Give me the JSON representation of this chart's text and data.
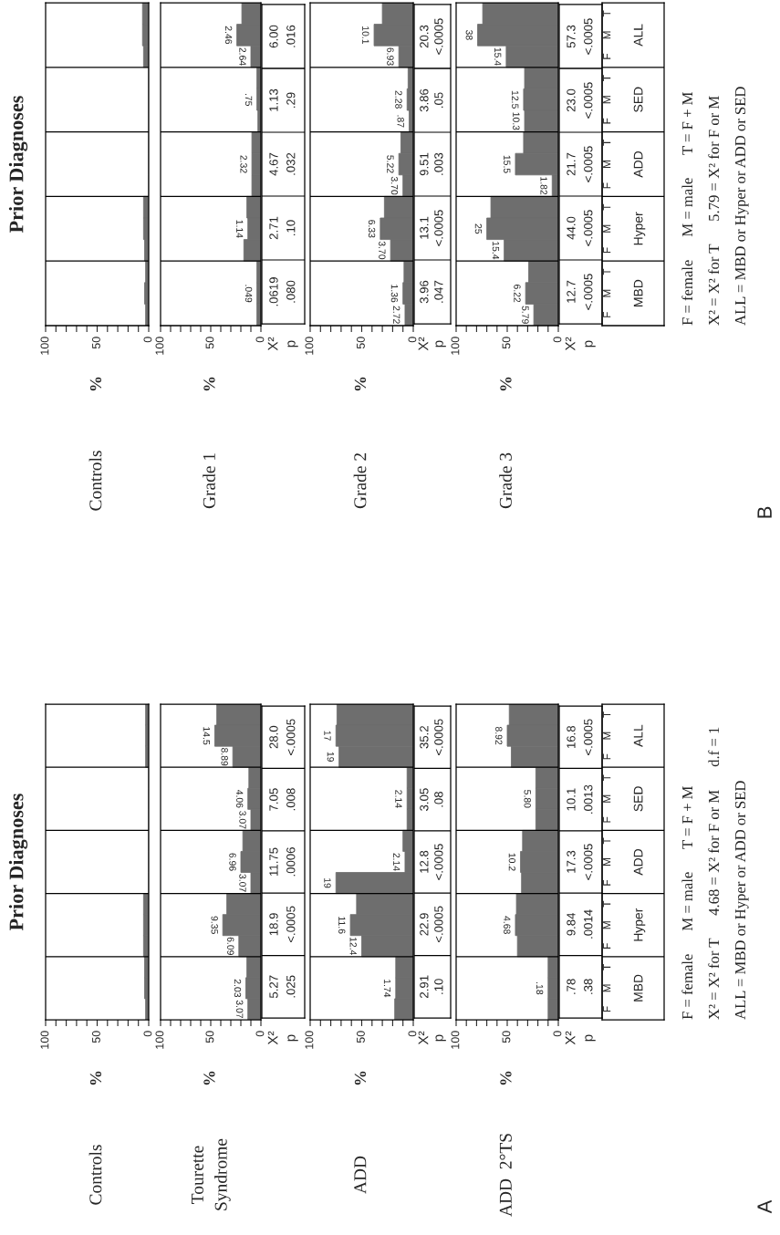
{
  "chart_data": [
    {
      "type": "bar",
      "orientation": "horizontal",
      "title": "Controls",
      "ylabel": "%",
      "color": "#6e6e6e",
      "values": [
        6,
        6,
        5,
        0,
        0,
        0,
        0,
        0,
        0,
        5,
        5,
        4,
        3,
        4,
        3
      ],
      "xlim": [
        100,
        0
      ],
      "xticks": [
        100,
        {
          "value": 90,
          "label": null
        },
        {
          "value": 80,
          "label": null
        },
        {
          "value": 70,
          "label": null
        },
        {
          "value": 60,
          "label": null
        },
        50,
        {
          "value": 40,
          "label": null
        },
        {
          "value": 30,
          "label": null
        },
        {
          "value": 20,
          "label": null
        },
        {
          "value": 10,
          "label": null
        },
        0
      ],
      "tick_labels": "x",
      "annotations": [
        "Prior Diagnoses"
      ]
    },
    {
      "type": "bar",
      "orientation": "horizontal",
      "title": "Grade 1",
      "ylabel": "%",
      "color": "#6e6e6e",
      "values": [
        19,
        24,
        10,
        4,
        4,
        3,
        9,
        9,
        9,
        14,
        13,
        17,
        4,
        4,
        4
      ],
      "xlim": [
        100,
        0
      ],
      "xticks": [
        100,
        {
          "value": 90,
          "label": null
        },
        {
          "value": 80,
          "label": null
        },
        {
          "value": 70,
          "label": null
        },
        {
          "value": 60,
          "label": null
        },
        50,
        {
          "value": 40,
          "label": null
        },
        {
          "value": 30,
          "label": null
        },
        {
          "value": 20,
          "label": null
        },
        {
          "value": 10,
          "label": null
        },
        0
      ],
      "tick_labels": "x",
      "annotations": [
        "X²",
        "p",
        ".0619",
        ".080",
        "2.71",
        ".10",
        "4.67",
        ".032",
        "1.13",
        ".29",
        "6.00",
        ".016",
        "2.46",
        "2.64",
        ".75",
        "2.32",
        "1.14",
        ".049"
      ]
    },
    {
      "type": "bar",
      "orientation": "horizontal",
      "title": "Grade 2",
      "ylabel": "%",
      "color": "#6e6e6e",
      "values": [
        30,
        38,
        14,
        5,
        6,
        4,
        12,
        14,
        10,
        28,
        32,
        22,
        9,
        10,
        8
      ],
      "xlim": [
        100,
        0
      ],
      "xticks": [
        100,
        {
          "value": 90,
          "label": null
        },
        {
          "value": 80,
          "label": null
        },
        {
          "value": 70,
          "label": null
        },
        {
          "value": 60,
          "label": null
        },
        50,
        {
          "value": 40,
          "label": null
        },
        {
          "value": 30,
          "label": null
        },
        {
          "value": 20,
          "label": null
        },
        {
          "value": 10,
          "label": null
        },
        0
      ],
      "tick_labels": "x",
      "annotations": [
        "X²",
        "p",
        "3.96",
        ".047",
        "13.1",
        "<.0005",
        "9.51",
        ".003",
        "3.86",
        ".05",
        "20.3",
        "<.0005",
        "10.1",
        "6.93",
        "2.28",
        ".87",
        "5.22",
        "3.70",
        "6.33",
        "3.70",
        "1.36",
        "2.72"
      ]
    },
    {
      "type": "bar",
      "orientation": "horizontal",
      "title": "Grade 3",
      "ylabel": "%",
      "color": "#6e6e6e",
      "categories": [
        "T",
        "M",
        "F",
        "T",
        "M",
        "F",
        "T",
        "M",
        "F",
        "T",
        "M",
        "F",
        "T",
        "M",
        "F"
      ],
      "values": [
        74,
        79,
        51,
        33,
        34,
        33,
        34,
        42,
        6,
        66,
        70,
        53,
        29,
        32,
        24
      ],
      "xlim": [
        100,
        0
      ],
      "xticks": [
        100,
        {
          "value": 90,
          "label": null
        },
        {
          "value": 80,
          "label": null
        },
        {
          "value": 70,
          "label": null
        },
        {
          "value": 60,
          "label": null
        },
        50,
        {
          "value": 40,
          "label": null
        },
        {
          "value": 30,
          "label": null
        },
        {
          "value": 20,
          "label": null
        },
        {
          "value": 10,
          "label": null
        },
        0
      ],
      "annotations": [
        "X²",
        "p",
        "12.7",
        "<.0005",
        "44.0",
        "<.0005",
        "21.7",
        "<.0005",
        "23.0",
        "<.0005",
        "57.3",
        "<.0005",
        "MBD",
        "Hyper",
        "ADD",
        "SED",
        "ALL",
        "F = female      M = male      T = F + M",
        "X² = X² for T      5.79 = X² for F or M",
        "ALL = MBD or Hyper or ADD or SED",
        "B",
        "38",
        "15.4",
        "12.5",
        "10.3",
        "15.5",
        "1.82",
        "25",
        "15.4",
        "6.22",
        "5.79"
      ]
    },
    {
      "type": "bar",
      "orientation": "horizontal",
      "title": "Controls",
      "ylabel": "%",
      "color": "#6e6e6e",
      "values": [
        3,
        3,
        3,
        0,
        0,
        0,
        0,
        0,
        0,
        5,
        5,
        5,
        4,
        4,
        3
      ],
      "xlim": [
        100,
        0
      ],
      "xticks": [
        100,
        {
          "value": 90,
          "label": null
        },
        {
          "value": 80,
          "label": null
        },
        {
          "value": 70,
          "label": null
        },
        {
          "value": 60,
          "label": null
        },
        50,
        {
          "value": 40,
          "label": null
        },
        {
          "value": 30,
          "label": null
        },
        {
          "value": 20,
          "label": null
        },
        {
          "value": 10,
          "label": null
        },
        0
      ],
      "tick_labels": "x",
      "annotations": [
        "Prior Diagnoses"
      ]
    },
    {
      "type": "bar",
      "orientation": "horizontal",
      "title": "Tourette\nSyndrome",
      "ylabel": "%",
      "color": "#6e6e6e",
      "values": [
        44,
        46,
        28,
        12,
        13,
        10,
        18,
        20,
        10,
        34,
        38,
        22,
        14,
        15,
        13
      ],
      "xlim": [
        100,
        0
      ],
      "xticks": [
        100,
        {
          "value": 90,
          "label": null
        },
        {
          "value": 80,
          "label": null
        },
        {
          "value": 70,
          "label": null
        },
        {
          "value": 60,
          "label": null
        },
        50,
        {
          "value": 40,
          "label": null
        },
        {
          "value": 30,
          "label": null
        },
        {
          "value": 20,
          "label": null
        },
        {
          "value": 10,
          "label": null
        },
        0
      ],
      "tick_labels": "x",
      "annotations": [
        "X²",
        "p",
        "5.27",
        ".025",
        "18.9",
        "<.0005",
        "11.75",
        ".0006",
        "7.05",
        ".008",
        "28.0",
        "<.0005",
        "14.5",
        "8.89",
        "4.06",
        "3.07",
        "6.96",
        "3.07",
        "9.35",
        "6.09",
        "2.03",
        "3.07"
      ]
    },
    {
      "type": "bar",
      "orientation": "horizontal",
      "title": "ADD",
      "ylabel": "%",
      "color": "#6e6e6e",
      "values": [
        74,
        75,
        72,
        6,
        6,
        6,
        10,
        8,
        75,
        55,
        61,
        50,
        17,
        17,
        18
      ],
      "xlim": [
        100,
        0
      ],
      "xticks": [
        100,
        {
          "value": 90,
          "label": null
        },
        {
          "value": 80,
          "label": null
        },
        {
          "value": 70,
          "label": null
        },
        {
          "value": 60,
          "label": null
        },
        50,
        {
          "value": 40,
          "label": null
        },
        {
          "value": 30,
          "label": null
        },
        {
          "value": 20,
          "label": null
        },
        {
          "value": 10,
          "label": null
        },
        0
      ],
      "tick_labels": "x",
      "annotations": [
        "X²",
        "p",
        "2.91",
        ".10",
        "22.9",
        "<.0005",
        "12.8",
        "<.0005",
        "3.05",
        ".08",
        "35.2",
        "<.0005",
        "17",
        "19",
        "2.14",
        "2.14",
        "19",
        "11.6",
        "12.4",
        "1.74"
      ]
    },
    {
      "type": "bar",
      "orientation": "horizontal",
      "title": "ADD  2°TS",
      "ylabel": "%",
      "color": "#6e6e6e",
      "categories": [
        "T",
        "M",
        "F",
        "T",
        "M",
        "F",
        "T",
        "M",
        "F",
        "T",
        "M",
        "F",
        "T",
        "M",
        "F"
      ],
      "values": [
        48,
        50,
        46,
        22,
        22,
        22,
        35,
        37,
        36,
        41,
        42,
        40,
        10,
        10,
        10
      ],
      "xlim": [
        100,
        0
      ],
      "xticks": [
        100,
        {
          "value": 90,
          "label": null
        },
        {
          "value": 80,
          "label": null
        },
        {
          "value": 70,
          "label": null
        },
        {
          "value": 60,
          "label": null
        },
        50,
        {
          "value": 40,
          "label": null
        },
        {
          "value": 30,
          "label": null
        },
        {
          "value": 20,
          "label": null
        },
        {
          "value": 10,
          "label": null
        },
        0
      ],
      "annotations": [
        "X²",
        "p",
        ".78",
        ".38",
        "9.84",
        ".0014",
        "17.3",
        "<.0005",
        "10.1",
        ".0013",
        "16.8",
        "<.0005",
        "MBD",
        "Hyper",
        "ADD",
        "SED",
        "ALL",
        "F = female      M = male      T = F + M",
        "X² = X² for T      4.68 = X² for F or M      d.f = 1",
        "ALL = MBD or Hyper or ADD or SED",
        "A",
        "8.92",
        "5.80",
        "10.2",
        "4.68",
        ".18"
      ]
    }
  ]
}
